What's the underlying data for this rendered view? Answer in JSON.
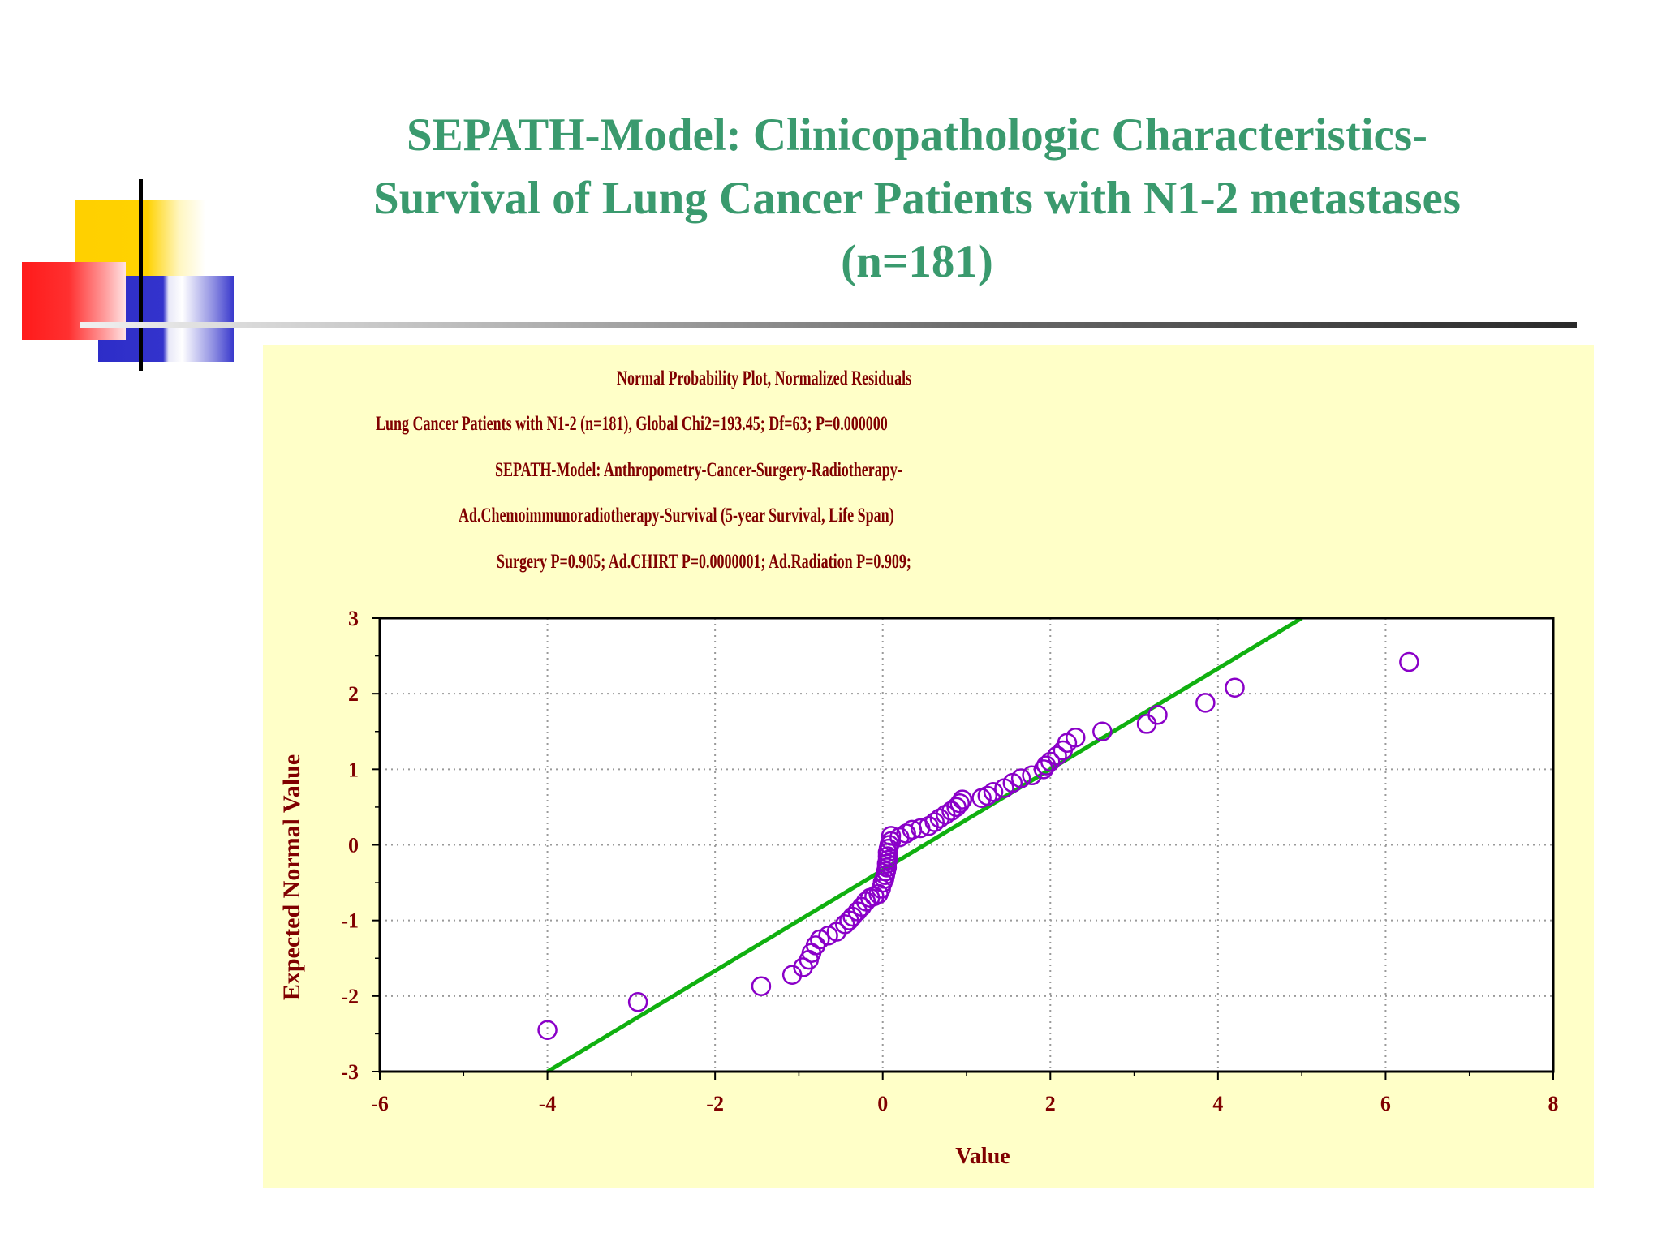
{
  "slide": {
    "title_lines": [
      "SEPATH-Model: Clinicopathologic Characteristics-",
      "Survival of Lung Cancer Patients with N1-2 metastases",
      "(n=181)"
    ]
  },
  "colors": {
    "title": "#3a9a6e",
    "panel_bg": "#ffffc8",
    "chart_text": "#800000",
    "points": "#8a00c8",
    "fit_line": "#10b010"
  },
  "chart_data": {
    "type": "scatter",
    "title": "Normal Probability Plot, Normalized Residuals",
    "subtitle_lines": [
      "Lung Cancer Patients with N1-2 (n=181), Global Chi2=193.45; Df=63; P=0.000000",
      "SEPATH-Model: Anthropometry-Cancer-Surgery-Radiotherapy-",
      "Ad.Chemoimmunoradiotherapy-Survival (5-year Survival, Life Span)",
      "Surgery P=0.905; Ad.CHIRT P=0.0000001; Ad.Radiation P=0.909;"
    ],
    "xlabel": "Value",
    "ylabel": "Expected Normal Value",
    "xlim": [
      -6,
      8
    ],
    "ylim": [
      -3,
      3
    ],
    "xticks": [
      "-6",
      "-4",
      "-2",
      "0",
      "2",
      "4",
      "6",
      "8"
    ],
    "yticks": [
      "3",
      "2",
      "1",
      "0",
      "-1",
      "-2",
      "-3"
    ],
    "grid": true,
    "fit_line": {
      "x": [
        -4.0,
        5.0
      ],
      "y": [
        -3.0,
        3.0
      ]
    },
    "points": [
      [
        -4.0,
        -2.45
      ],
      [
        -2.92,
        -2.08
      ],
      [
        -1.45,
        -1.87
      ],
      [
        -1.08,
        -1.72
      ],
      [
        -0.95,
        -1.62
      ],
      [
        -0.88,
        -1.52
      ],
      [
        -0.85,
        -1.43
      ],
      [
        -0.8,
        -1.33
      ],
      [
        -0.75,
        -1.25
      ],
      [
        -0.65,
        -1.2
      ],
      [
        -0.55,
        -1.15
      ],
      [
        -0.45,
        -1.05
      ],
      [
        -0.4,
        -1.0
      ],
      [
        -0.36,
        -0.95
      ],
      [
        -0.3,
        -0.88
      ],
      [
        -0.25,
        -0.82
      ],
      [
        -0.2,
        -0.75
      ],
      [
        -0.15,
        -0.7
      ],
      [
        -0.1,
        -0.68
      ],
      [
        -0.05,
        -0.65
      ],
      [
        -0.02,
        -0.58
      ],
      [
        0.0,
        -0.5
      ],
      [
        0.02,
        -0.45
      ],
      [
        0.03,
        -0.4
      ],
      [
        0.04,
        -0.35
      ],
      [
        0.05,
        -0.3
      ],
      [
        0.05,
        -0.25
      ],
      [
        0.06,
        -0.2
      ],
      [
        0.06,
        -0.15
      ],
      [
        0.06,
        -0.1
      ],
      [
        0.07,
        -0.05
      ],
      [
        0.08,
        0.0
      ],
      [
        0.1,
        0.05
      ],
      [
        0.1,
        0.12
      ],
      [
        0.2,
        0.1
      ],
      [
        0.28,
        0.15
      ],
      [
        0.35,
        0.2
      ],
      [
        0.45,
        0.22
      ],
      [
        0.55,
        0.25
      ],
      [
        0.62,
        0.3
      ],
      [
        0.68,
        0.35
      ],
      [
        0.75,
        0.4
      ],
      [
        0.82,
        0.45
      ],
      [
        0.88,
        0.5
      ],
      [
        0.92,
        0.55
      ],
      [
        0.95,
        0.6
      ],
      [
        1.18,
        0.62
      ],
      [
        1.25,
        0.65
      ],
      [
        1.32,
        0.7
      ],
      [
        1.45,
        0.75
      ],
      [
        1.55,
        0.82
      ],
      [
        1.65,
        0.88
      ],
      [
        1.78,
        0.92
      ],
      [
        1.92,
        1.0
      ],
      [
        1.95,
        1.05
      ],
      [
        2.0,
        1.1
      ],
      [
        2.08,
        1.18
      ],
      [
        2.15,
        1.25
      ],
      [
        2.2,
        1.35
      ],
      [
        2.3,
        1.42
      ],
      [
        2.62,
        1.5
      ],
      [
        3.15,
        1.6
      ],
      [
        3.28,
        1.72
      ],
      [
        3.85,
        1.88
      ],
      [
        4.2,
        2.08
      ],
      [
        6.28,
        2.42
      ]
    ]
  }
}
